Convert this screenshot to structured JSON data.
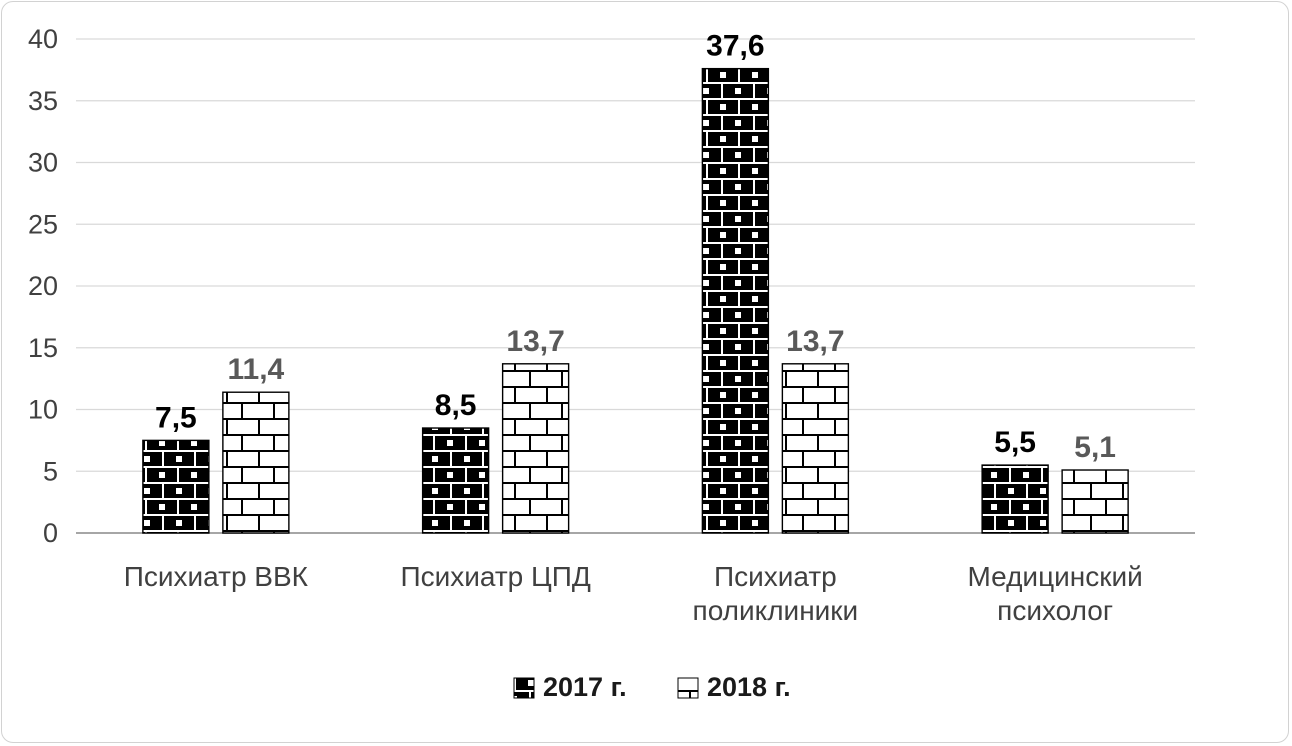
{
  "chart_data": {
    "type": "bar",
    "title": "",
    "categories": [
      "Психиатр ВВК",
      "Психиатр ЦПД",
      "Психиатр поликлиники",
      "Медицинский психолог"
    ],
    "category_lines": [
      [
        "Психиатр ВВК"
      ],
      [
        "Психиатр ЦПД"
      ],
      [
        "Психиатр",
        "поликлиники"
      ],
      [
        "Медицинский",
        "психолог"
      ]
    ],
    "series": [
      {
        "name": "2017 г.",
        "values": [
          7.5,
          8.5,
          37.6,
          5.5
        ],
        "pattern": "pat2017",
        "label_color": "#000000"
      },
      {
        "name": "2018 г.",
        "values": [
          11.4,
          13.7,
          13.7,
          5.1
        ],
        "pattern": "pat2018",
        "label_color": "#595959"
      }
    ],
    "value_labels": [
      [
        "7,5",
        "8,5",
        "37,6",
        "5,5"
      ],
      [
        "11,4",
        "13,7",
        "13,7",
        "5,1"
      ]
    ],
    "ylim": [
      0,
      40
    ],
    "ytick_step": 5,
    "yticks": [
      "0",
      "5",
      "10",
      "15",
      "20",
      "25",
      "30",
      "35",
      "40"
    ],
    "grid": true,
    "legend_position": "bottom",
    "colors": {
      "gridline": "#d9d9d9",
      "axis_line": "#9a9a9a",
      "tick_label": "#404040",
      "category_label": "#404040",
      "legend_label": "#1a1a1a",
      "bar_stroke": "#000000",
      "pattern_dark_bg": "#000000",
      "pattern_light_bg": "#ffffff"
    }
  }
}
